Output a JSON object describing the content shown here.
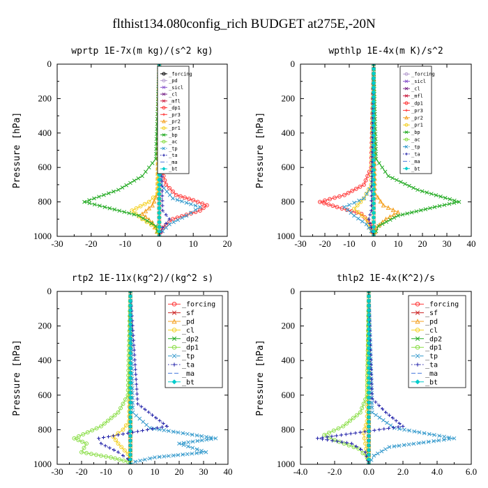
{
  "figure_title": "flthist134.080config_rich  BUDGET at275E,-20N",
  "chart_data": [
    {
      "type": "line",
      "title": "wprtp  1E-7x(m kg)/(s^2 kg)",
      "ylabel": "Pressure [hPa]",
      "xlim": [
        -30,
        20
      ],
      "ylim": [
        1000,
        0
      ],
      "xticks": [
        "-30",
        "-20",
        "-10",
        "0",
        "10",
        "20"
      ],
      "yticks": [
        "0",
        "200",
        "400",
        "600",
        "800",
        "1000"
      ],
      "legend_size": "small",
      "series": [
        {
          "name": "_forcing",
          "color": "#000000",
          "marker": "o",
          "dash": "",
          "x": [
            0,
            0,
            0,
            0
          ],
          "y": [
            0,
            300,
            700,
            1000
          ]
        },
        {
          "name": "_pd",
          "color": "#b49ccf",
          "marker": "o",
          "dash": "",
          "x": [
            0,
            0,
            0,
            0
          ],
          "y": [
            0,
            300,
            700,
            1000
          ]
        },
        {
          "name": "_sicl",
          "color": "#8855cc",
          "marker": "x",
          "dash": "",
          "x": [
            0,
            0,
            0,
            0
          ],
          "y": [
            0,
            300,
            700,
            1000
          ]
        },
        {
          "name": "_cl",
          "color": "#7a2a8a",
          "marker": "x",
          "dash": "",
          "x": [
            0,
            0,
            0,
            0
          ],
          "y": [
            0,
            300,
            700,
            1000
          ]
        },
        {
          "name": "_mfl",
          "color": "#cc2244",
          "marker": "x",
          "dash": "",
          "x": [
            0,
            0,
            0,
            0
          ],
          "y": [
            0,
            300,
            700,
            1000
          ]
        },
        {
          "name": "_dp1",
          "color": "#ff3333",
          "marker": "o",
          "dash": "",
          "x": [
            0,
            0.5,
            2,
            5,
            10,
            14,
            12,
            4,
            1,
            0
          ],
          "y": [
            0,
            600,
            700,
            760,
            790,
            820,
            850,
            900,
            950,
            1000
          ]
        },
        {
          "name": "_pr3",
          "color": "#ff3333",
          "marker": "+",
          "dash": "",
          "x": [
            0,
            0,
            0,
            0
          ],
          "y": [
            0,
            300,
            700,
            1000
          ]
        },
        {
          "name": "_pr2",
          "color": "#f4a020",
          "marker": "^",
          "dash": "",
          "x": [
            0,
            -0.5,
            -2,
            -5,
            -2,
            0
          ],
          "y": [
            0,
            750,
            820,
            870,
            920,
            1000
          ]
        },
        {
          "name": "_pr1",
          "color": "#f4d020",
          "marker": "o",
          "dash": "",
          "x": [
            0,
            -0.5,
            -3,
            -8,
            -5,
            -1,
            0
          ],
          "y": [
            0,
            750,
            800,
            850,
            900,
            950,
            1000
          ]
        },
        {
          "name": "_bp",
          "color": "#22aa22",
          "marker": "x",
          "dash": "",
          "x": [
            0,
            -1,
            -5,
            -12,
            -22,
            -16,
            -6,
            -1,
            0
          ],
          "y": [
            0,
            550,
            650,
            730,
            800,
            830,
            880,
            940,
            1000
          ]
        },
        {
          "name": "_ac",
          "color": "#88dd44",
          "marker": "o",
          "dash": "",
          "x": [
            0,
            0,
            0,
            0
          ],
          "y": [
            0,
            300,
            700,
            1000
          ]
        },
        {
          "name": "_tp",
          "color": "#3399cc",
          "marker": "x",
          "dash": "dashdot",
          "x": [
            0,
            0.5,
            4,
            12,
            8,
            3,
            1,
            0
          ],
          "y": [
            0,
            700,
            780,
            830,
            880,
            930,
            970,
            1000
          ]
        },
        {
          "name": "_ta",
          "color": "#2222aa",
          "marker": "+",
          "dash": "dot",
          "x": [
            0,
            1,
            3,
            1,
            0
          ],
          "y": [
            0,
            850,
            900,
            950,
            1000
          ]
        },
        {
          "name": "_ma",
          "color": "#4477dd",
          "marker": "none",
          "dash": "dash",
          "x": [
            0,
            0,
            0,
            0
          ],
          "y": [
            0,
            300,
            700,
            1000
          ]
        },
        {
          "name": "_bt",
          "color": "#00cccc",
          "marker": "D",
          "dash": "",
          "x": [
            0,
            0,
            0,
            0
          ],
          "y": [
            0,
            300,
            700,
            1000
          ]
        }
      ]
    },
    {
      "type": "line",
      "title": "wpthlp  1E-4x(m K)/s^2",
      "ylabel": "Pressure [hPa]",
      "xlim": [
        -30,
        40
      ],
      "ylim": [
        1000,
        0
      ],
      "xticks": [
        "-30",
        "-20",
        "-10",
        "0",
        "10",
        "20",
        "30",
        "40"
      ],
      "yticks": [
        "0",
        "200",
        "400",
        "600",
        "800",
        "1000"
      ],
      "legend_size": "small",
      "series": [
        {
          "name": "_forcing",
          "color": "#b49ccf",
          "marker": "o",
          "dash": "",
          "x": [
            0,
            0,
            0,
            0
          ],
          "y": [
            0,
            300,
            700,
            1000
          ]
        },
        {
          "name": "_sicl",
          "color": "#8855cc",
          "marker": "x",
          "dash": "",
          "x": [
            0,
            0,
            0,
            0
          ],
          "y": [
            0,
            300,
            700,
            1000
          ]
        },
        {
          "name": "_cl",
          "color": "#7a2a8a",
          "marker": "x",
          "dash": "",
          "x": [
            0,
            0,
            0,
            0
          ],
          "y": [
            0,
            300,
            700,
            1000
          ]
        },
        {
          "name": "_mfl",
          "color": "#cc2244",
          "marker": "x",
          "dash": "",
          "x": [
            0,
            0,
            0,
            0
          ],
          "y": [
            0,
            300,
            700,
            1000
          ]
        },
        {
          "name": "_dp1",
          "color": "#ff3333",
          "marker": "o",
          "dash": "",
          "x": [
            0,
            -1,
            -4,
            -12,
            -22,
            -15,
            -5,
            -1,
            0
          ],
          "y": [
            0,
            600,
            700,
            760,
            800,
            830,
            870,
            930,
            1000
          ]
        },
        {
          "name": "_pr3",
          "color": "#ff3333",
          "marker": "+",
          "dash": "",
          "x": [
            0,
            0,
            0,
            0
          ],
          "y": [
            0,
            300,
            700,
            1000
          ]
        },
        {
          "name": "_pr2",
          "color": "#f4a020",
          "marker": "^",
          "dash": "",
          "x": [
            0,
            0.5,
            4,
            10,
            5,
            1,
            0
          ],
          "y": [
            0,
            750,
            820,
            860,
            900,
            950,
            1000
          ]
        },
        {
          "name": "_pr1",
          "color": "#f4d020",
          "marker": "o",
          "dash": "",
          "x": [
            0,
            -1,
            -4,
            -8,
            -3,
            0
          ],
          "y": [
            0,
            700,
            780,
            840,
            900,
            1000
          ]
        },
        {
          "name": "_bp",
          "color": "#22aa22",
          "marker": "x",
          "dash": "",
          "x": [
            0,
            1,
            6,
            18,
            35,
            25,
            10,
            2,
            0
          ],
          "y": [
            0,
            550,
            650,
            730,
            800,
            830,
            880,
            940,
            1000
          ]
        },
        {
          "name": "_ac",
          "color": "#88dd44",
          "marker": "o",
          "dash": "",
          "x": [
            0,
            0,
            0,
            0
          ],
          "y": [
            0,
            300,
            700,
            1000
          ]
        },
        {
          "name": "_tp",
          "color": "#3399cc",
          "marker": "x",
          "dash": "dashdot",
          "x": [
            0,
            -0.5,
            -4,
            -12,
            -8,
            -3,
            -1,
            0
          ],
          "y": [
            0,
            700,
            780,
            830,
            880,
            930,
            970,
            1000
          ]
        },
        {
          "name": "_ta",
          "color": "#2222aa",
          "marker": "+",
          "dash": "dot",
          "x": [
            0,
            -1,
            -2,
            -1,
            0
          ],
          "y": [
            0,
            850,
            900,
            950,
            1000
          ]
        },
        {
          "name": "_ma",
          "color": "#4477dd",
          "marker": "none",
          "dash": "dash",
          "x": [
            0,
            0,
            0,
            0
          ],
          "y": [
            0,
            300,
            700,
            1000
          ]
        },
        {
          "name": "_bt",
          "color": "#00cccc",
          "marker": "D",
          "dash": "",
          "x": [
            0,
            0,
            0,
            0
          ],
          "y": [
            0,
            300,
            700,
            1000
          ]
        }
      ]
    },
    {
      "type": "line",
      "title": "rtp2  1E-11x(kg^2)/(kg^2 s)",
      "ylabel": "Pressure [hPa]",
      "xlim": [
        -30,
        40
      ],
      "ylim": [
        1000,
        0
      ],
      "xticks": [
        "-30",
        "-20",
        "-10",
        "0",
        "10",
        "20",
        "30",
        "40"
      ],
      "yticks": [
        "0",
        "200",
        "400",
        "600",
        "800",
        "1000"
      ],
      "legend_size": "large",
      "series": [
        {
          "name": "_forcing",
          "color": "#ff3333",
          "marker": "o",
          "dash": "",
          "x": [
            0,
            0,
            0,
            0
          ],
          "y": [
            0,
            300,
            700,
            1000
          ]
        },
        {
          "name": "_sf",
          "color": "#cc2222",
          "marker": "x",
          "dash": "",
          "x": [
            0,
            0,
            0,
            0
          ],
          "y": [
            0,
            300,
            700,
            1000
          ]
        },
        {
          "name": "_pd",
          "color": "#f4a020",
          "marker": "^",
          "dash": "",
          "x": [
            0,
            0,
            0,
            0
          ],
          "y": [
            0,
            300,
            700,
            1000
          ]
        },
        {
          "name": "_cl",
          "color": "#f4d020",
          "marker": "o",
          "dash": "",
          "x": [
            0,
            -0.5,
            -3,
            -7,
            -5,
            -1,
            0
          ],
          "y": [
            0,
            750,
            800,
            840,
            880,
            940,
            1000
          ]
        },
        {
          "name": "_dp2",
          "color": "#22aa22",
          "marker": "x",
          "dash": "",
          "x": [
            0,
            0,
            0,
            0
          ],
          "y": [
            0,
            300,
            700,
            1000
          ]
        },
        {
          "name": "_dp1",
          "color": "#88dd44",
          "marker": "o",
          "dash": "",
          "x": [
            0,
            -1,
            -5,
            -12,
            -23,
            -18,
            -20,
            -8,
            -1,
            0
          ],
          "y": [
            0,
            600,
            700,
            780,
            850,
            880,
            930,
            960,
            985,
            1000
          ]
        },
        {
          "name": "_tp",
          "color": "#3399cc",
          "marker": "x",
          "dash": "dashdot",
          "x": [
            0,
            1,
            8,
            35,
            20,
            31,
            10,
            2,
            0
          ],
          "y": [
            0,
            700,
            790,
            850,
            880,
            930,
            960,
            985,
            1000
          ]
        },
        {
          "name": "_ta",
          "color": "#2222aa",
          "marker": "+",
          "dash": "dot",
          "x": [
            0,
            3,
            15,
            -13,
            -12,
            -5,
            -1,
            0
          ],
          "y": [
            0,
            650,
            780,
            850,
            880,
            930,
            970,
            1000
          ]
        },
        {
          "name": "_ma",
          "color": "#4477dd",
          "marker": "none",
          "dash": "dash",
          "x": [
            0,
            0,
            0,
            0
          ],
          "y": [
            0,
            300,
            700,
            1000
          ]
        },
        {
          "name": "_bt",
          "color": "#00cccc",
          "marker": "D",
          "dash": "",
          "x": [
            0,
            0,
            0,
            0
          ],
          "y": [
            0,
            300,
            700,
            1000
          ]
        }
      ]
    },
    {
      "type": "line",
      "title": "thlp2  1E-4x(K^2)/s",
      "ylabel": "Pressure [hPa]",
      "xlim": [
        -4,
        6
      ],
      "ylim": [
        1000,
        0
      ],
      "xticks": [
        "-4.0",
        "-2.0",
        "0.0",
        "2.0",
        "4.0",
        "6.0"
      ],
      "yticks": [
        "0",
        "200",
        "400",
        "600",
        "800",
        "1000"
      ],
      "legend_size": "large",
      "series": [
        {
          "name": "_forcing",
          "color": "#ff3333",
          "marker": "o",
          "dash": "",
          "x": [
            0,
            0,
            0,
            0
          ],
          "y": [
            0,
            300,
            700,
            1000
          ]
        },
        {
          "name": "_sf",
          "color": "#cc2222",
          "marker": "x",
          "dash": "",
          "x": [
            0,
            0,
            0,
            0
          ],
          "y": [
            0,
            300,
            700,
            1000
          ]
        },
        {
          "name": "_pd",
          "color": "#f4a020",
          "marker": "^",
          "dash": "",
          "x": [
            0,
            0,
            0,
            0
          ],
          "y": [
            0,
            300,
            700,
            1000
          ]
        },
        {
          "name": "_cl",
          "color": "#f4d020",
          "marker": "o",
          "dash": "",
          "x": [
            0,
            -0.1,
            -0.3,
            -0.2,
            0
          ],
          "y": [
            0,
            750,
            820,
            880,
            1000
          ]
        },
        {
          "name": "_dp2",
          "color": "#22aa22",
          "marker": "x",
          "dash": "",
          "x": [
            0,
            0,
            0,
            0
          ],
          "y": [
            0,
            300,
            700,
            1000
          ]
        },
        {
          "name": "_dp1",
          "color": "#88dd44",
          "marker": "o",
          "dash": "",
          "x": [
            0,
            -0.1,
            -0.5,
            -1.5,
            -2.6,
            -2.0,
            -0.6,
            -0.1,
            0
          ],
          "y": [
            0,
            600,
            700,
            780,
            830,
            860,
            910,
            960,
            1000
          ]
        },
        {
          "name": "_tp",
          "color": "#3399cc",
          "marker": "x",
          "dash": "dashdot",
          "x": [
            0,
            0.2,
            1.5,
            5.0,
            3.5,
            1.2,
            0.3,
            0
          ],
          "y": [
            0,
            700,
            790,
            850,
            870,
            900,
            950,
            1000
          ]
        },
        {
          "name": "_ta",
          "color": "#2222aa",
          "marker": "+",
          "dash": "dot",
          "x": [
            0,
            0.2,
            1.0,
            2.0,
            -3.0,
            -1.0,
            -0.2,
            0
          ],
          "y": [
            0,
            620,
            700,
            780,
            850,
            880,
            930,
            1000
          ]
        },
        {
          "name": "_ma",
          "color": "#4477dd",
          "marker": "none",
          "dash": "dash",
          "x": [
            0,
            0,
            0,
            0
          ],
          "y": [
            0,
            300,
            700,
            1000
          ]
        },
        {
          "name": "_bt",
          "color": "#00cccc",
          "marker": "D",
          "dash": "",
          "x": [
            0,
            0,
            0,
            0
          ],
          "y": [
            0,
            300,
            700,
            1000
          ]
        }
      ]
    }
  ]
}
